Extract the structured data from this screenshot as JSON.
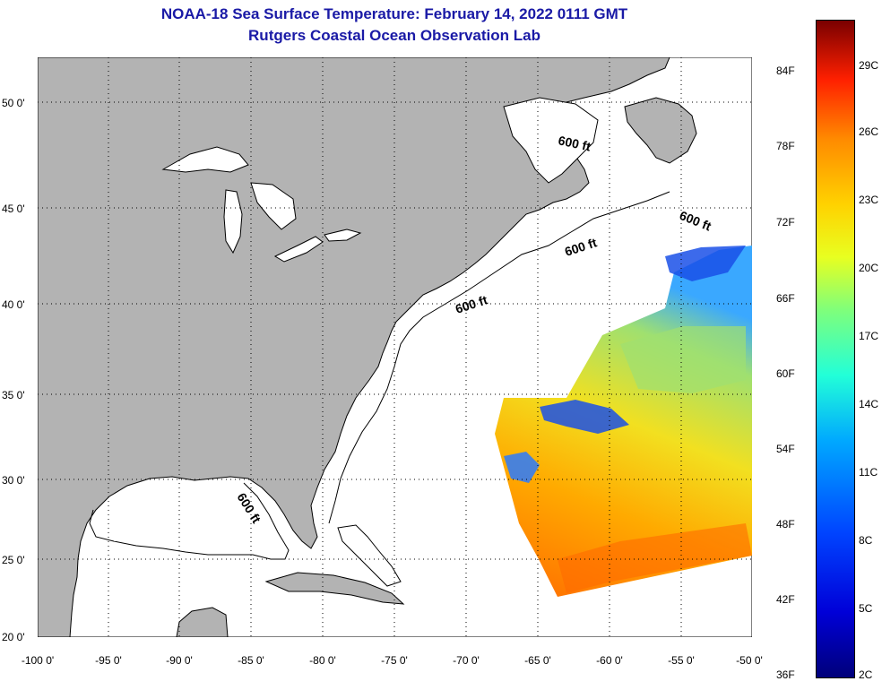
{
  "title": {
    "line1": "NOAA-18 Sea Surface Temperature:  February 14, 2022 0111 GMT",
    "line2": "Rutgers Coastal Ocean Observation Lab"
  },
  "axes": {
    "lat_labels": [
      "50 0'",
      "45 0'",
      "40 0'",
      "35 0'",
      "30 0'",
      "25 0'",
      "20 0'"
    ],
    "lon_labels": [
      "-100 0'",
      "-95 0'",
      "-90 0'",
      "-85 0'",
      "-80 0'",
      "-75 0'",
      "-70 0'",
      "-65 0'",
      "-60 0'",
      "-55 0'",
      "-50 0'"
    ]
  },
  "map": {
    "land_color": "#b3b3b3",
    "ocean_color": "#ffffff",
    "grid": "dotted",
    "depth_labels": [
      "600 ft",
      "600 ft",
      "600 ft",
      "600 ft",
      "600 ft"
    ]
  },
  "colorbar": {
    "f_labels": [
      "84F",
      "78F",
      "72F",
      "66F",
      "60F",
      "54F",
      "48F",
      "42F",
      "36F"
    ],
    "c_labels": [
      "29C",
      "26C",
      "23C",
      "20C",
      "17C",
      "14C",
      "11C",
      "8C",
      "5C",
      "2C"
    ],
    "colors": [
      "#00007a",
      "#0000d8",
      "#0044ff",
      "#00a8ff",
      "#22ffd8",
      "#80ff7a",
      "#e8ff20",
      "#ffd200",
      "#ff8a00",
      "#ff2000",
      "#7a0000"
    ]
  }
}
